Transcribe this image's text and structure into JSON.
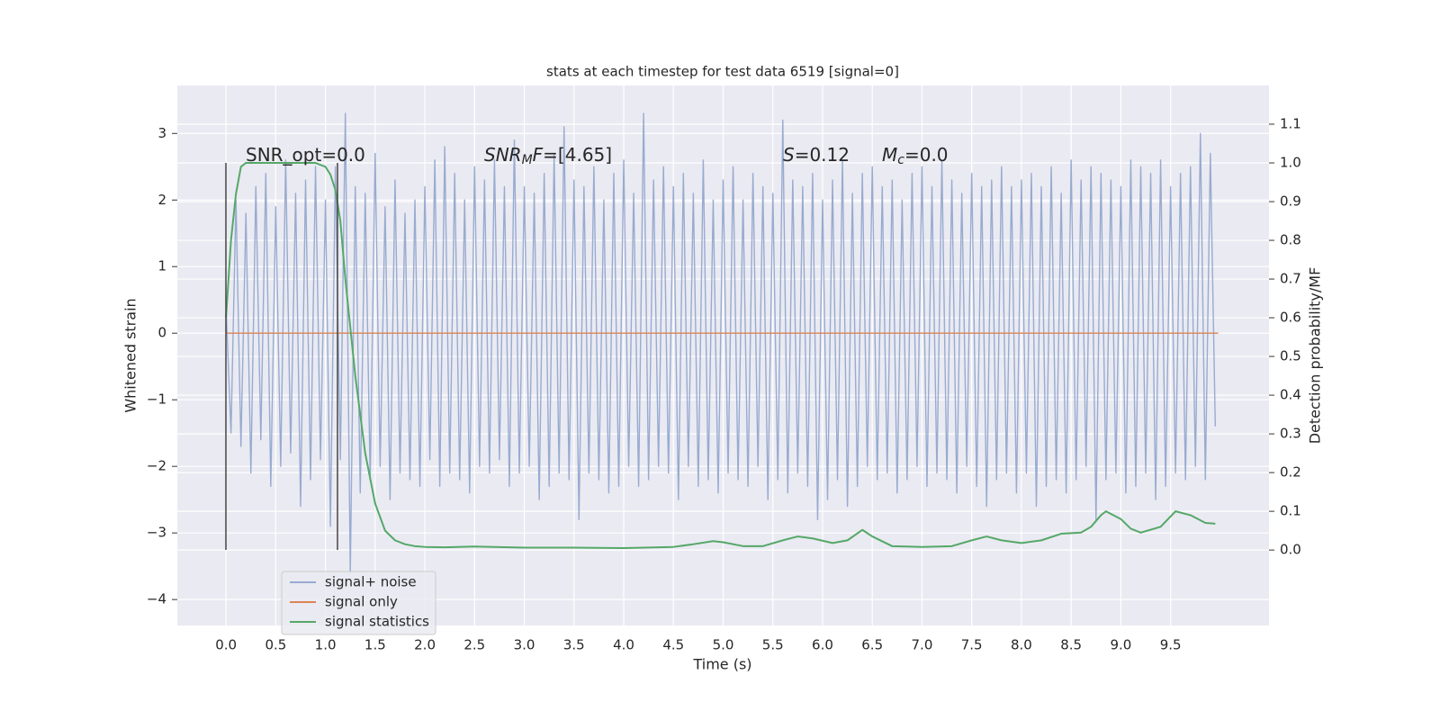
{
  "chart_data": {
    "type": "line",
    "title": "stats at each timestep for test data 6519 [signal=0]",
    "xlabel": "Time (s)",
    "ylabel": "Whitened strain",
    "y2label": "Detection probability/MF",
    "xlim": [
      -0.49,
      10.49
    ],
    "ylim": [
      -4.39,
      3.72
    ],
    "y2lim": [
      -0.195,
      1.2
    ],
    "xticks": [
      {
        "value": 0,
        "label": "0.0"
      },
      0.5,
      {
        "value": 1,
        "label": "1.0"
      },
      1.5,
      {
        "value": 2,
        "label": "2.0"
      },
      2.5,
      {
        "value": 3,
        "label": "3.0"
      },
      3.5,
      {
        "value": 4,
        "label": "4.0"
      },
      4.5,
      {
        "value": 5,
        "label": "5.0"
      },
      5.5,
      {
        "value": 6,
        "label": "6.0"
      },
      6.5,
      {
        "value": 7,
        "label": "7.0"
      },
      7.5,
      {
        "value": 8,
        "label": "8.0"
      },
      8.5,
      {
        "value": 9,
        "label": "9.0"
      },
      9.5
    ],
    "yticks": [
      {
        "value": -4,
        "label": "−4"
      },
      {
        "value": -3,
        "label": "−3"
      },
      {
        "value": -2,
        "label": "−2"
      },
      {
        "value": -1,
        "label": "−1"
      },
      0,
      1,
      2,
      3
    ],
    "y2ticks": [
      {
        "value": 0,
        "label": "0.0"
      },
      0.1,
      0.2,
      0.3,
      0.4,
      0.5,
      0.6,
      0.7,
      0.8,
      0.9,
      {
        "value": 1,
        "label": "1.0"
      },
      1.1
    ],
    "grid": true,
    "legend": "lower left",
    "series": [
      {
        "name": "signal+ noise",
        "color": "#98abd0",
        "x": [
          0,
          0.05,
          0.1,
          0.15,
          0.2,
          0.25,
          0.3,
          0.35,
          0.4,
          0.45,
          0.5,
          0.55,
          0.6,
          0.65,
          0.7,
          0.75,
          0.8,
          0.85,
          0.9,
          0.95,
          1,
          1.05,
          1.1,
          1.15,
          1.2,
          1.25,
          1.3,
          1.35,
          1.4,
          1.45,
          1.5,
          1.55,
          1.6,
          1.65,
          1.7,
          1.75,
          1.8,
          1.85,
          1.9,
          1.95,
          2,
          2.05,
          2.1,
          2.15,
          2.2,
          2.25,
          2.3,
          2.35,
          2.4,
          2.45,
          2.5,
          2.55,
          2.6,
          2.65,
          2.7,
          2.75,
          2.8,
          2.85,
          2.9,
          2.95,
          3,
          3.05,
          3.1,
          3.15,
          3.2,
          3.25,
          3.3,
          3.35,
          3.4,
          3.45,
          3.5,
          3.55,
          3.6,
          3.65,
          3.7,
          3.75,
          3.8,
          3.85,
          3.9,
          3.95,
          4,
          4.05,
          4.1,
          4.15,
          4.2,
          4.25,
          4.3,
          4.35,
          4.4,
          4.45,
          4.5,
          4.55,
          4.6,
          4.65,
          4.7,
          4.75,
          4.8,
          4.85,
          4.9,
          4.95,
          5,
          5.05,
          5.1,
          5.15,
          5.2,
          5.25,
          5.3,
          5.35,
          5.4,
          5.45,
          5.5,
          5.55,
          5.6,
          5.65,
          5.7,
          5.75,
          5.8,
          5.85,
          5.9,
          5.95,
          6,
          6.05,
          6.1,
          6.15,
          6.2,
          6.25,
          6.3,
          6.35,
          6.4,
          6.45,
          6.5,
          6.55,
          6.6,
          6.65,
          6.7,
          6.75,
          6.8,
          6.85,
          6.9,
          6.95,
          7,
          7.05,
          7.1,
          7.15,
          7.2,
          7.25,
          7.3,
          7.35,
          7.4,
          7.45,
          7.5,
          7.55,
          7.6,
          7.65,
          7.7,
          7.75,
          7.8,
          7.85,
          7.9,
          7.95,
          8,
          8.05,
          8.1,
          8.15,
          8.2,
          8.25,
          8.3,
          8.35,
          8.4,
          8.45,
          8.5,
          8.55,
          8.6,
          8.65,
          8.7,
          8.75,
          8.8,
          8.85,
          8.9,
          8.95,
          9,
          9.05,
          9.1,
          9.15,
          9.2,
          9.25,
          9.3,
          9.35,
          9.4,
          9.45,
          9.5,
          9.55,
          9.6,
          9.65,
          9.7,
          9.75,
          9.8,
          9.85,
          9.9,
          9.95
        ],
        "values": [
          0.4,
          -1.5,
          2.0,
          -1.7,
          1.8,
          -2.1,
          2.2,
          -1.6,
          2.4,
          -2.3,
          1.9,
          -2.0,
          2.6,
          -1.8,
          2.1,
          -2.6,
          2.3,
          -2.2,
          2.5,
          -1.9,
          2.0,
          -2.9,
          2.5,
          -1.9,
          3.3,
          -3.6,
          2.2,
          -2.4,
          2.1,
          -2.2,
          2.7,
          -2.0,
          1.9,
          -2.5,
          2.3,
          -2.1,
          1.8,
          -2.2,
          2.0,
          -2.3,
          2.2,
          -1.9,
          2.6,
          -2.3,
          2.8,
          -2.1,
          2.4,
          -2.2,
          2.0,
          -2.4,
          2.5,
          -2.0,
          2.3,
          -2.1,
          2.6,
          -1.9,
          2.2,
          -2.3,
          2.9,
          -2.1,
          2.2,
          -2.0,
          2.1,
          -2.5,
          2.4,
          -2.3,
          2.7,
          -2.1,
          3.1,
          -2.2,
          2.3,
          -2.8,
          2.2,
          -2.1,
          2.5,
          -2.2,
          2.0,
          -2.4,
          2.4,
          -2.3,
          2.6,
          -2.0,
          2.1,
          -2.3,
          3.3,
          -2.2,
          2.3,
          -2.0,
          2.5,
          -2.1,
          2.2,
          -2.5,
          2.4,
          -2.0,
          2.1,
          -2.3,
          2.6,
          -2.2,
          2.0,
          -2.4,
          2.3,
          -2.1,
          2.5,
          -2.2,
          2.0,
          -2.3,
          2.4,
          -2.0,
          2.2,
          -2.5,
          2.1,
          -2.2,
          3.2,
          -2.4,
          2.3,
          -2.1,
          2.2,
          -2.3,
          2.4,
          -2.8,
          2.0,
          -2.5,
          2.3,
          -2.2,
          2.6,
          -2.6,
          2.1,
          -2.3,
          2.4,
          -2.0,
          2.5,
          -2.2,
          2.2,
          -2.1,
          2.3,
          -2.4,
          2.0,
          -2.2,
          2.4,
          -2.0,
          2.5,
          -2.3,
          2.2,
          -2.1,
          2.6,
          -2.2,
          2.3,
          -2.4,
          2.1,
          -2.0,
          2.4,
          -2.3,
          2.2,
          -2.6,
          2.3,
          -2.2,
          2.5,
          -2.1,
          2.2,
          -2.4,
          2.3,
          -2.1,
          2.4,
          -2.6,
          2.2,
          -2.3,
          2.5,
          -2.2,
          2.1,
          -2.4,
          2.6,
          -2.2,
          2.3,
          -2.0,
          2.5,
          -2.8,
          2.4,
          -2.2,
          2.3,
          -2.1,
          2.2,
          -2.4,
          2.6,
          -2.3,
          2.5,
          -2.1,
          2.4,
          -2.5,
          2.6,
          -2.3,
          2.2,
          -2.1,
          2.4,
          -2.2,
          2.5,
          -2.0,
          3.0,
          -2.2,
          2.7,
          -1.4
        ]
      },
      {
        "name": "signal only",
        "color": "#dd8452",
        "x": [
          0,
          9.98
        ],
        "values": [
          0,
          0
        ]
      },
      {
        "name": "signal statistics",
        "color": "#55a868",
        "axis": "y2",
        "x": [
          0,
          0.05,
          0.1,
          0.15,
          0.2,
          0.3,
          0.5,
          0.8,
          0.9,
          1.0,
          1.05,
          1.1,
          1.15,
          1.2,
          1.3,
          1.4,
          1.5,
          1.6,
          1.7,
          1.8,
          1.9,
          2.0,
          2.2,
          2.5,
          3.0,
          3.5,
          4.0,
          4.5,
          4.7,
          4.9,
          5.0,
          5.2,
          5.4,
          5.6,
          5.75,
          5.9,
          6.1,
          6.25,
          6.4,
          6.5,
          6.7,
          7.0,
          7.3,
          7.5,
          7.65,
          7.8,
          8.0,
          8.2,
          8.4,
          8.6,
          8.7,
          8.8,
          8.85,
          9.0,
          9.1,
          9.2,
          9.4,
          9.55,
          9.7,
          9.85,
          9.95
        ],
        "values": [
          0.6,
          0.8,
          0.92,
          0.99,
          1.0,
          1.0,
          1.0,
          1.0,
          1.0,
          0.99,
          0.97,
          0.93,
          0.85,
          0.7,
          0.45,
          0.25,
          0.12,
          0.05,
          0.025,
          0.015,
          0.01,
          0.008,
          0.007,
          0.009,
          0.006,
          0.006,
          0.005,
          0.008,
          0.015,
          0.023,
          0.02,
          0.01,
          0.01,
          0.025,
          0.035,
          0.03,
          0.018,
          0.025,
          0.052,
          0.035,
          0.01,
          0.008,
          0.01,
          0.025,
          0.035,
          0.025,
          0.018,
          0.025,
          0.042,
          0.045,
          0.06,
          0.09,
          0.1,
          0.08,
          0.055,
          0.045,
          0.06,
          0.1,
          0.09,
          0.07,
          0.068
        ]
      }
    ],
    "annotations": [
      {
        "parts": [
          {
            "text": "SNR_opt=0.0"
          }
        ]
      },
      {
        "parts": [
          {
            "text": "SNR",
            "style": "italic"
          },
          {
            "text": "M",
            "style": "italic-sub"
          },
          {
            "text": "F",
            "style": "italic"
          },
          {
            "text": "=[4.65]"
          }
        ]
      },
      {
        "parts": [
          {
            "text": "S",
            "style": "italic"
          },
          {
            "text": "=0.12"
          }
        ]
      },
      {
        "parts": [
          {
            "text": "M",
            "style": "italic"
          },
          {
            "text": "c",
            "style": "italic-sub"
          },
          {
            "text": "=0.0"
          }
        ]
      }
    ]
  }
}
